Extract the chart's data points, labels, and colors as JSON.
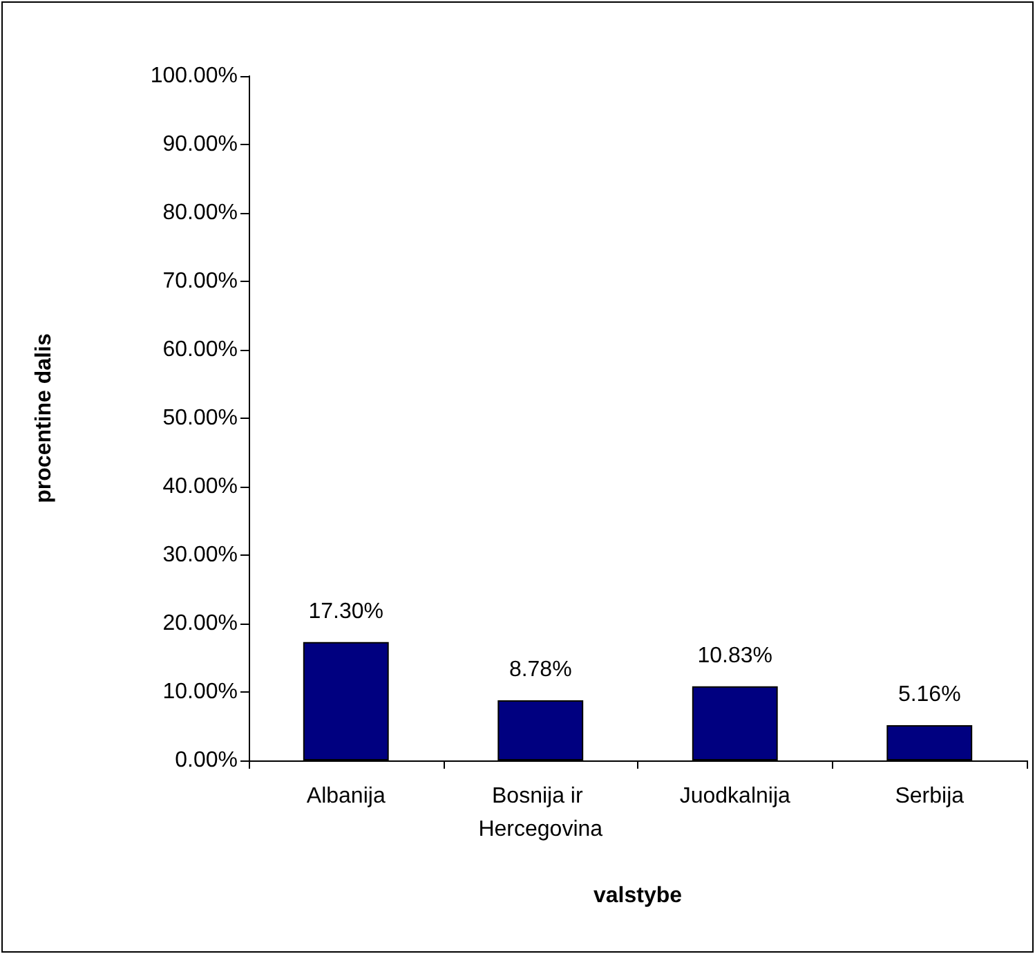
{
  "chart_data": {
    "type": "bar",
    "xlabel": "valstybe",
    "ylabel": "procentine dalis",
    "categories": [
      "Albanija",
      "Bosnija ir Hercegovina",
      "Juodkalnija",
      "Serbija"
    ],
    "values": [
      17.3,
      8.78,
      10.83,
      5.16
    ],
    "color": "#000080",
    "value_labels": [
      "17.30%",
      "8.78%",
      "10.83%",
      "5.16%"
    ],
    "ylim": [
      0,
      100
    ],
    "yticks": [
      {
        "value": 0,
        "label": "0.00%"
      },
      {
        "value": 10,
        "label": "10.00%"
      },
      {
        "value": 20,
        "label": "20.00%"
      },
      {
        "value": 30,
        "label": "30.00%"
      },
      {
        "value": 40,
        "label": "40.00%"
      },
      {
        "value": 50,
        "label": "50.00%"
      },
      {
        "value": 60,
        "label": "60.00%"
      },
      {
        "value": 70,
        "label": "70.00%"
      },
      {
        "value": 80,
        "label": "80.00%"
      },
      {
        "value": 90,
        "label": "90.00%"
      },
      {
        "value": 100,
        "label": "100.00%"
      }
    ],
    "grid": false
  }
}
